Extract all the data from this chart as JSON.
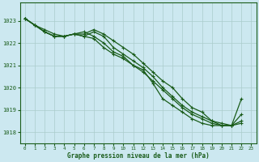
{
  "title": "Graphe pression niveau de la mer (hPa)",
  "background_color": "#cce8f0",
  "grid_color": "#aacccc",
  "line_color": "#1a5c1a",
  "xlim": [
    -0.5,
    23.5
  ],
  "ylim": [
    1017.5,
    1023.8
  ],
  "yticks": [
    1018,
    1019,
    1020,
    1021,
    1022,
    1023
  ],
  "xticks": [
    0,
    1,
    2,
    3,
    4,
    5,
    6,
    7,
    8,
    9,
    10,
    11,
    12,
    13,
    14,
    15,
    16,
    17,
    18,
    19,
    20,
    21,
    22,
    23
  ],
  "series": [
    [
      1023.1,
      1022.8,
      1022.5,
      1022.3,
      1022.3,
      1022.4,
      1022.3,
      1022.2,
      1021.8,
      1021.5,
      1021.3,
      1021.0,
      1020.7,
      1020.3,
      1019.9,
      1019.5,
      1019.1,
      1018.8,
      1018.6,
      1018.4,
      1018.3,
      1018.3,
      1019.5,
      null
    ],
    [
      1023.1,
      1022.8,
      1022.5,
      1022.3,
      1022.3,
      1022.4,
      1022.3,
      1022.5,
      1022.3,
      1021.8,
      1021.5,
      1021.2,
      1020.9,
      1020.5,
      1020.0,
      1019.6,
      1019.2,
      1018.9,
      1018.7,
      1018.5,
      1018.3,
      1018.3,
      1018.8,
      null
    ],
    [
      1023.1,
      1022.8,
      1022.6,
      1022.4,
      1022.3,
      1022.4,
      1022.4,
      1022.6,
      1022.4,
      1022.1,
      1021.8,
      1021.5,
      1021.1,
      1020.7,
      1020.3,
      1020.0,
      1019.5,
      1019.1,
      1018.9,
      1018.5,
      1018.4,
      1018.3,
      1018.5,
      null
    ],
    [
      1023.1,
      1022.8,
      1022.5,
      1022.3,
      1022.3,
      1022.4,
      1022.5,
      1022.3,
      1022.0,
      1021.6,
      1021.4,
      1021.0,
      1020.8,
      1020.2,
      1019.5,
      1019.2,
      1018.9,
      1018.6,
      1018.4,
      1018.3,
      1018.3,
      1018.3,
      1018.4,
      null
    ]
  ],
  "series2": [
    [
      1023.1,
      null,
      null,
      null,
      null,
      null,
      null,
      null,
      null,
      null,
      null,
      null,
      null,
      null,
      null,
      null,
      null,
      null,
      null,
      null,
      null,
      null,
      null,
      1019.5
    ],
    [
      1023.1,
      null,
      null,
      null,
      null,
      null,
      null,
      null,
      null,
      null,
      null,
      null,
      null,
      null,
      null,
      null,
      null,
      null,
      null,
      null,
      null,
      null,
      null,
      1018.3
    ]
  ],
  "marker": "+",
  "markersize": 3.5,
  "linewidth": 0.9
}
